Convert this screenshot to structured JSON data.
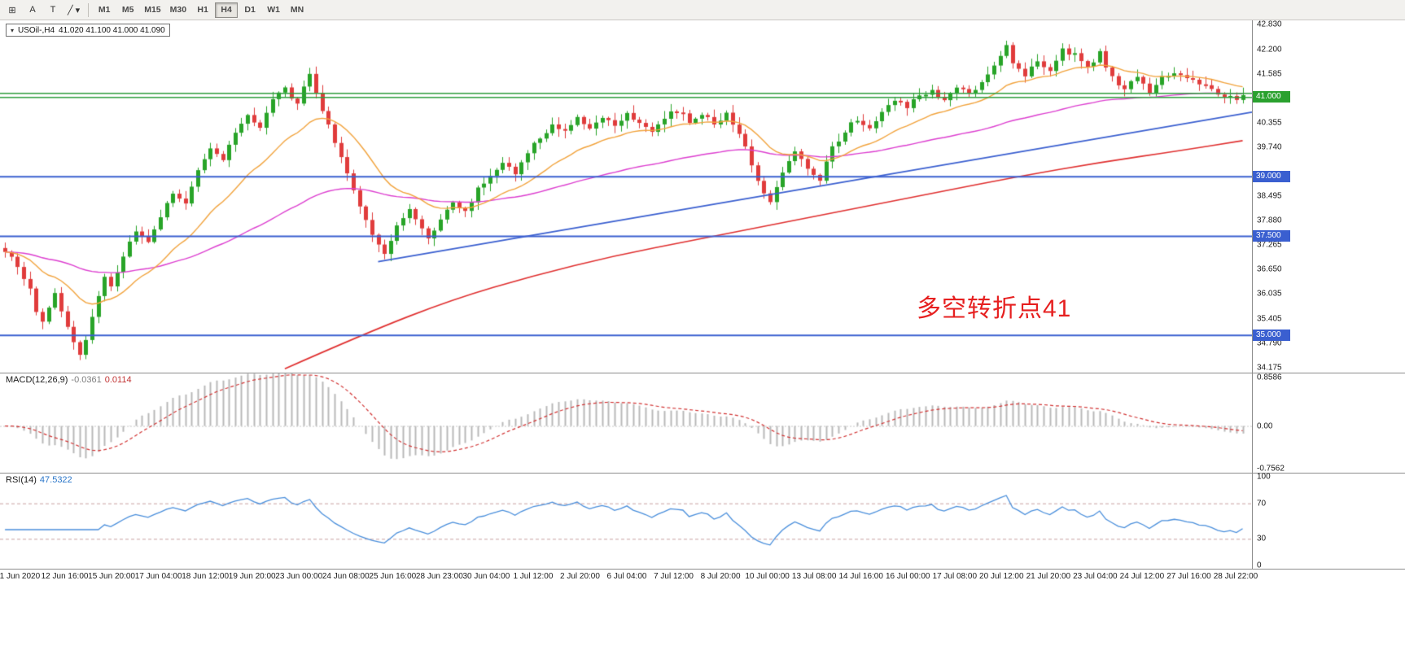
{
  "toolbar": {
    "tools": [
      {
        "name": "chart-grid-icon",
        "glyph": "⊞"
      },
      {
        "name": "insert-text-tool",
        "glyph": "A"
      },
      {
        "name": "text-label-tool",
        "glyph": "T"
      },
      {
        "name": "draw-line-tool",
        "glyph": "╱",
        "caret": "▾"
      }
    ],
    "timeframes": [
      {
        "label": "M1",
        "active": false
      },
      {
        "label": "M5",
        "active": false
      },
      {
        "label": "M15",
        "active": false
      },
      {
        "label": "M30",
        "active": false
      },
      {
        "label": "H1",
        "active": false
      },
      {
        "label": "H4",
        "active": true
      },
      {
        "label": "D1",
        "active": false
      },
      {
        "label": "W1",
        "active": false
      },
      {
        "label": "MN",
        "active": false
      }
    ]
  },
  "chart": {
    "symbol_period": "USOil-,H4",
    "ohlc_text": "41.020 41.100 41.000 41.090",
    "collapse_arrow": "▾",
    "annotation": "多空转折点41",
    "annotation_color": "#e62020",
    "price_ticks": [
      "42.830",
      "42.200",
      "41.585",
      "40.355",
      "39.740",
      "38.495",
      "37.880",
      "37.265",
      "36.650",
      "36.035",
      "35.405",
      "34.790",
      "34.175"
    ],
    "hline_tags": [
      {
        "text": "41.000",
        "price": 41.0,
        "color": "#2aa12e"
      },
      {
        "text": "39.000",
        "price": 39.0,
        "color": "#3a5fd0"
      },
      {
        "text": "37.500",
        "price": 37.5,
        "color": "#3a5fd0"
      },
      {
        "text": "35.000",
        "price": 35.0,
        "color": "#3a5fd0"
      }
    ]
  },
  "macd_panel": {
    "name": "MACD(12,26,9)",
    "value": "-0.0361",
    "signal_value": "0.0114",
    "ticks": [
      "0.8586",
      "0.00",
      "-0.7562"
    ],
    "tick_values": [
      0.8586,
      0,
      -0.7562
    ]
  },
  "rsi_panel": {
    "name": "RSI(14)",
    "value": "47.5322",
    "ticks": [
      "100",
      "70",
      "30",
      "0"
    ],
    "tick_values": [
      100,
      70,
      30,
      0
    ],
    "levels": [
      70,
      30
    ]
  },
  "time_axis": [
    "11 Jun 2020",
    "12 Jun 16:00",
    "15 Jun 20:00",
    "17 Jun 04:00",
    "18 Jun 12:00",
    "19 Jun 20:00",
    "23 Jun 00:00",
    "24 Jun 08:00",
    "25 Jun 16:00",
    "28 Jun 23:00",
    "30 Jun 04:00",
    "1 Jul 12:00",
    "2 Jul 20:00",
    "6 Jul 04:00",
    "7 Jul 12:00",
    "8 Jul 20:00",
    "10 Jul 00:00",
    "13 Jul 08:00",
    "14 Jul 16:00",
    "16 Jul 00:00",
    "17 Jul 08:00",
    "20 Jul 12:00",
    "21 Jul 20:00",
    "23 Jul 04:00",
    "24 Jul 12:00",
    "27 Jul 16:00",
    "28 Jul 22:00"
  ],
  "chart_data": {
    "type": "candlestick",
    "title": "USOil-,H4",
    "symbol": "USOil-",
    "timeframe": "H4",
    "bars": 200,
    "price_axis_range": [
      34.052,
      42.933
    ],
    "last_ohlc": {
      "open": 41.02,
      "high": 41.1,
      "low": 41.0,
      "close": 41.09
    },
    "close_anchors": [
      [
        0,
        37.15
      ],
      [
        2,
        36.7
      ],
      [
        4,
        36.15
      ],
      [
        5,
        35.6
      ],
      [
        6,
        35.3
      ],
      [
        7,
        35.75
      ],
      [
        8,
        36.1
      ],
      [
        9,
        35.6
      ],
      [
        10,
        35.15
      ],
      [
        12,
        34.55
      ],
      [
        13,
        34.85
      ],
      [
        14,
        35.45
      ],
      [
        15,
        35.95
      ],
      [
        16,
        36.5
      ],
      [
        17,
        36.2
      ],
      [
        19,
        37.0
      ],
      [
        21,
        37.6
      ],
      [
        23,
        37.3
      ],
      [
        25,
        38.0
      ],
      [
        27,
        38.6
      ],
      [
        29,
        38.3
      ],
      [
        31,
        39.1
      ],
      [
        33,
        39.7
      ],
      [
        35,
        39.4
      ],
      [
        37,
        40.1
      ],
      [
        39,
        40.6
      ],
      [
        41,
        40.2
      ],
      [
        43,
        40.9
      ],
      [
        45,
        41.2
      ],
      [
        47,
        40.8
      ],
      [
        48,
        41.3
      ],
      [
        49,
        41.55
      ],
      [
        50,
        41.1
      ],
      [
        51,
        40.6
      ],
      [
        53,
        39.9
      ],
      [
        55,
        39.1
      ],
      [
        57,
        38.2
      ],
      [
        59,
        37.5
      ],
      [
        61,
        37.05
      ],
      [
        63,
        37.7
      ],
      [
        65,
        38.2
      ],
      [
        67,
        37.7
      ],
      [
        68,
        37.4
      ],
      [
        70,
        37.95
      ],
      [
        72,
        38.35
      ],
      [
        74,
        38.1
      ],
      [
        76,
        38.7
      ],
      [
        78,
        39.0
      ],
      [
        80,
        39.3
      ],
      [
        82,
        39.1
      ],
      [
        84,
        39.6
      ],
      [
        86,
        40.0
      ],
      [
        88,
        40.3
      ],
      [
        90,
        40.1
      ],
      [
        92,
        40.45
      ],
      [
        94,
        40.2
      ],
      [
        96,
        40.5
      ],
      [
        98,
        40.3
      ],
      [
        100,
        40.6
      ],
      [
        102,
        40.35
      ],
      [
        104,
        40.15
      ],
      [
        106,
        40.5
      ],
      [
        108,
        40.65
      ],
      [
        110,
        40.4
      ],
      [
        112,
        40.6
      ],
      [
        114,
        40.3
      ],
      [
        116,
        40.55
      ],
      [
        118,
        40.1
      ],
      [
        120,
        39.3
      ],
      [
        122,
        38.6
      ],
      [
        123,
        38.4
      ],
      [
        125,
        39.1
      ],
      [
        127,
        39.6
      ],
      [
        129,
        39.2
      ],
      [
        131,
        38.95
      ],
      [
        133,
        39.7
      ],
      [
        135,
        40.15
      ],
      [
        137,
        40.45
      ],
      [
        139,
        40.25
      ],
      [
        141,
        40.65
      ],
      [
        143,
        40.95
      ],
      [
        145,
        40.75
      ],
      [
        147,
        41.05
      ],
      [
        149,
        41.15
      ],
      [
        151,
        40.95
      ],
      [
        153,
        41.25
      ],
      [
        155,
        41.05
      ],
      [
        157,
        41.35
      ],
      [
        159,
        41.8
      ],
      [
        161,
        42.35
      ],
      [
        162,
        41.9
      ],
      [
        164,
        41.5
      ],
      [
        166,
        41.95
      ],
      [
        168,
        41.6
      ],
      [
        170,
        42.2
      ],
      [
        172,
        42.05
      ],
      [
        174,
        41.7
      ],
      [
        176,
        42.1
      ],
      [
        178,
        41.5
      ],
      [
        180,
        41.2
      ],
      [
        182,
        41.5
      ],
      [
        184,
        41.1
      ],
      [
        186,
        41.5
      ],
      [
        188,
        41.6
      ],
      [
        190,
        41.5
      ],
      [
        192,
        41.35
      ],
      [
        194,
        41.15
      ],
      [
        196,
        41.0
      ],
      [
        198,
        40.95
      ],
      [
        199,
        41.09
      ]
    ],
    "indicators": {
      "ema_fast_period": 18,
      "ema_mid_period": 70,
      "ma_slow_anchors": [
        [
          45,
          34.15
        ],
        [
          58,
          35.05
        ],
        [
          72,
          35.9
        ],
        [
          85,
          36.5
        ],
        [
          98,
          37.0
        ],
        [
          111,
          37.4
        ],
        [
          124,
          37.8
        ],
        [
          137,
          38.2
        ],
        [
          150,
          38.6
        ],
        [
          163,
          39.0
        ],
        [
          176,
          39.35
        ],
        [
          189,
          39.65
        ],
        [
          199,
          39.9
        ]
      ],
      "trendline": [
        [
          60,
          36.85
        ],
        [
          199,
          40.62
        ]
      ],
      "hlines": [
        {
          "price": 41.1,
          "color": "#2f9e3f",
          "width": 1.5
        },
        {
          "price": 41.0,
          "color": "#2f9e3f",
          "width": 1.5
        },
        {
          "price": 39.0,
          "color": "#3a5fd0",
          "width": 2
        },
        {
          "price": 37.5,
          "color": "#3a5fd0",
          "width": 2
        },
        {
          "price": 35.0,
          "color": "#3a5fd0",
          "width": 2
        }
      ],
      "macd": {
        "fast": 12,
        "slow": 26,
        "signal": 9,
        "current": -0.0361,
        "signal_current": 0.0114,
        "axis_range": [
          -0.828,
          0.931
        ]
      },
      "rsi": {
        "period": 14,
        "current": 47.5322,
        "axis_range": [
          0,
          100
        ],
        "levels": [
          70,
          30
        ]
      }
    },
    "colors": {
      "up": "#28a428",
      "down": "#e03c3c",
      "ema_fast": "#f2a33c",
      "ema_mid": "#dd3fd0",
      "ma_slow": "#e03030",
      "trendline": "#3a5fd0",
      "macd_hist": "#b9b9b9",
      "macd_signal": "#d23333",
      "rsi": "#4a8fdc"
    }
  }
}
